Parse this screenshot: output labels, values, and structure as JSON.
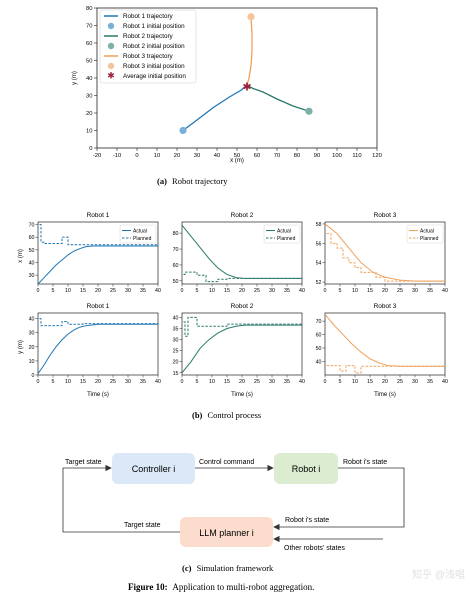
{
  "panel_a": {
    "caption_tag": "(a)",
    "caption_text": "Robot trajectory",
    "xlabel": "x (m)",
    "ylabel": "y (m)",
    "xticks": [
      -20,
      -10,
      0,
      10,
      20,
      30,
      40,
      50,
      60,
      70,
      80,
      90,
      100,
      110,
      120
    ],
    "yticks": [
      0,
      10,
      20,
      30,
      40,
      50,
      60,
      70,
      80
    ],
    "legend": [
      "Robot 1 trajectory",
      "Robot 1 initial position",
      "Robot 2 trajectory",
      "Robot 2 initial position",
      "Robot 3 trajectory",
      "Robot 3 initial position",
      "Average initial position"
    ]
  },
  "panel_b": {
    "caption_tag": "(b)",
    "caption_text": "Control process",
    "titles": [
      "Robot 1",
      "Robot 2",
      "Robot 3"
    ],
    "row_ylabels": [
      "x (m)",
      "y (m)"
    ],
    "xlabel": "Time (s)",
    "xticks": [
      0,
      5,
      10,
      15,
      20,
      25,
      30,
      35,
      40
    ],
    "legend_actual": "Actual",
    "legend_planned": "Planned"
  },
  "panel_c": {
    "caption_tag": "(c)",
    "caption_text": "Simulation framework",
    "controller": "Controller i",
    "robot": "Robot i",
    "llm": "LLM planner i",
    "target_state_top": "Target state",
    "control_command": "Control command",
    "robot_state_right": "Robot i's state",
    "target_state_bottom": "Target state",
    "robot_state_mid": "Robot i's state",
    "other_states": "Other robots' states"
  },
  "figure": {
    "label": "Figure 10:",
    "text": "Application to multi-robot aggregation."
  },
  "watermark": "知乎 @浅唱",
  "colors": {
    "robot1": "#1f77b4",
    "robot2": "#2a7a6a",
    "robot3": "#f0a15a",
    "marker1": "#7ab0d8",
    "marker2": "#7fb0a8",
    "marker3": "#f6c49a",
    "avg_star": "#a0213b",
    "controller_box": "#dbe8f7",
    "robot_box": "#dcecd0",
    "llm_box": "#fbdccd"
  },
  "chart_data": [
    {
      "type": "line",
      "title": "",
      "xlabel": "x (m)",
      "ylabel": "y (m)",
      "xlim": [
        -20,
        120
      ],
      "ylim": [
        0,
        80
      ],
      "series": [
        {
          "name": "Robot 1 trajectory",
          "x": [
            23,
            30,
            38,
            46,
            52,
            55
          ],
          "y": [
            10,
            16,
            23,
            29,
            33,
            36
          ]
        },
        {
          "name": "Robot 2 trajectory",
          "x": [
            86,
            78,
            70,
            63,
            58,
            55
          ],
          "y": [
            21,
            24,
            28,
            32,
            34,
            36
          ]
        },
        {
          "name": "Robot 3 trajectory",
          "x": [
            57,
            57.5,
            57.5,
            57,
            56,
            55
          ],
          "y": [
            75,
            65,
            55,
            47,
            40,
            36
          ]
        }
      ],
      "points": [
        {
          "name": "Robot 1 initial position",
          "x": 23,
          "y": 10
        },
        {
          "name": "Robot 2 initial position",
          "x": 86,
          "y": 21
        },
        {
          "name": "Robot 3 initial position",
          "x": 57,
          "y": 75
        },
        {
          "name": "Average initial position",
          "x": 55,
          "y": 35
        }
      ]
    },
    {
      "type": "line",
      "title": "Robot 1",
      "xlabel": "",
      "ylabel": "x (m)",
      "xlim": [
        0,
        40
      ],
      "ylim": [
        23,
        72
      ],
      "yticks": [
        30,
        40,
        50,
        60,
        70
      ],
      "series": [
        {
          "name": "Actual",
          "x": [
            0,
            2,
            4,
            6,
            8,
            10,
            12,
            14,
            16,
            18,
            20,
            25,
            30,
            35,
            40
          ],
          "y": [
            23,
            28,
            33,
            38,
            42,
            46,
            49,
            51,
            52.5,
            53,
            53,
            53,
            53,
            53,
            53
          ]
        },
        {
          "name": "Planned",
          "x": [
            0.5,
            1,
            1,
            2,
            2,
            8,
            8,
            10,
            10,
            40
          ],
          "y": [
            70,
            70,
            56,
            56,
            55,
            55,
            60,
            60,
            54,
            54
          ]
        }
      ]
    },
    {
      "type": "line",
      "title": "Robot 2",
      "xlabel": "",
      "ylabel": "",
      "xlim": [
        0,
        40
      ],
      "ylim": [
        48,
        87
      ],
      "yticks": [
        50,
        60,
        70,
        80
      ],
      "series": [
        {
          "name": "Actual",
          "x": [
            0,
            3,
            6,
            9,
            12,
            15,
            18,
            21,
            25,
            30,
            35,
            40
          ],
          "y": [
            85,
            78,
            71,
            64,
            58,
            54,
            52,
            51.5,
            51.5,
            51.5,
            51.5,
            51.5
          ]
        },
        {
          "name": "Planned",
          "x": [
            0.5,
            1,
            1,
            5,
            5,
            8,
            8,
            10,
            10,
            12,
            12,
            15,
            15,
            40
          ],
          "y": [
            54,
            54,
            55.5,
            55.5,
            53.5,
            53.5,
            49.5,
            49.5,
            49.5,
            49.5,
            51,
            51,
            51.5,
            51.5
          ]
        }
      ]
    },
    {
      "type": "line",
      "title": "Robot 3",
      "xlabel": "",
      "ylabel": "",
      "xlim": [
        0,
        40
      ],
      "ylim": [
        51.8,
        58.2
      ],
      "yticks": [
        52,
        54,
        56,
        58
      ],
      "series": [
        {
          "name": "Actual",
          "x": [
            0,
            4,
            8,
            12,
            16,
            20,
            25,
            30,
            35,
            40
          ],
          "y": [
            58,
            57,
            55.5,
            54,
            53,
            52.5,
            52.2,
            52.1,
            52.1,
            52.1
          ]
        },
        {
          "name": "Planned",
          "x": [
            0.5,
            2,
            2,
            4,
            4,
            6,
            6,
            8,
            8,
            10,
            10,
            12,
            12,
            17,
            17,
            20,
            20,
            40
          ],
          "y": [
            57,
            57,
            56,
            56,
            55.5,
            55.5,
            54.5,
            54.5,
            54,
            54,
            53.5,
            53.5,
            53,
            53,
            52.5,
            52.5,
            52.1,
            52.1
          ]
        }
      ]
    },
    {
      "type": "line",
      "title": "",
      "xlabel": "Time (s)",
      "ylabel": "y (m)",
      "xlim": [
        0,
        40
      ],
      "ylim": [
        0,
        44
      ],
      "yticks": [
        0,
        10,
        20,
        30,
        40
      ],
      "series": [
        {
          "name": "Actual",
          "x": [
            0,
            2,
            4,
            6,
            8,
            10,
            12,
            14,
            16,
            18,
            20,
            25,
            30,
            35,
            40
          ],
          "y": [
            1,
            7,
            14,
            20,
            25,
            29,
            32,
            34,
            35,
            35.5,
            36,
            36,
            36,
            36,
            36
          ]
        },
        {
          "name": "Planned",
          "x": [
            0.5,
            1,
            1,
            8,
            8,
            10,
            10,
            15,
            15,
            40
          ],
          "y": [
            40,
            40,
            35,
            35,
            38,
            38,
            36,
            36,
            36.5,
            36.5
          ]
        }
      ]
    },
    {
      "type": "line",
      "title": "",
      "xlabel": "Time (s)",
      "ylabel": "",
      "xlim": [
        0,
        40
      ],
      "ylim": [
        14,
        42
      ],
      "yticks": [
        15,
        20,
        25,
        30,
        35,
        40
      ],
      "series": [
        {
          "name": "Actual",
          "x": [
            0,
            3,
            6,
            9,
            12,
            15,
            18,
            21,
            25,
            30,
            35,
            40
          ],
          "y": [
            15,
            20,
            26,
            30,
            33,
            35,
            36,
            36.5,
            36.5,
            36.5,
            36.5,
            36.5
          ]
        },
        {
          "name": "Planned",
          "x": [
            0.5,
            1,
            1,
            2,
            2,
            5,
            5,
            8,
            8,
            15,
            15,
            40
          ],
          "y": [
            38,
            38,
            31.5,
            31.5,
            40,
            40,
            36,
            36,
            36,
            36,
            37,
            37
          ]
        }
      ]
    },
    {
      "type": "line",
      "title": "",
      "xlabel": "Time (s)",
      "ylabel": "",
      "xlim": [
        0,
        40
      ],
      "ylim": [
        30,
        76
      ],
      "yticks": [
        40,
        50,
        60,
        70
      ],
      "series": [
        {
          "name": "Actual",
          "x": [
            0,
            3,
            6,
            9,
            12,
            15,
            18,
            21,
            25,
            30,
            35,
            40
          ],
          "y": [
            75,
            67,
            60,
            53,
            47,
            42,
            39,
            37,
            36.5,
            36.5,
            36.5,
            36.5
          ]
        },
        {
          "name": "Planned",
          "x": [
            0.5,
            5,
            5,
            7,
            7,
            10,
            10,
            12,
            12,
            40
          ],
          "y": [
            37,
            37,
            33,
            33,
            37,
            37,
            31.5,
            31.5,
            36.5,
            36.5
          ]
        }
      ]
    }
  ]
}
